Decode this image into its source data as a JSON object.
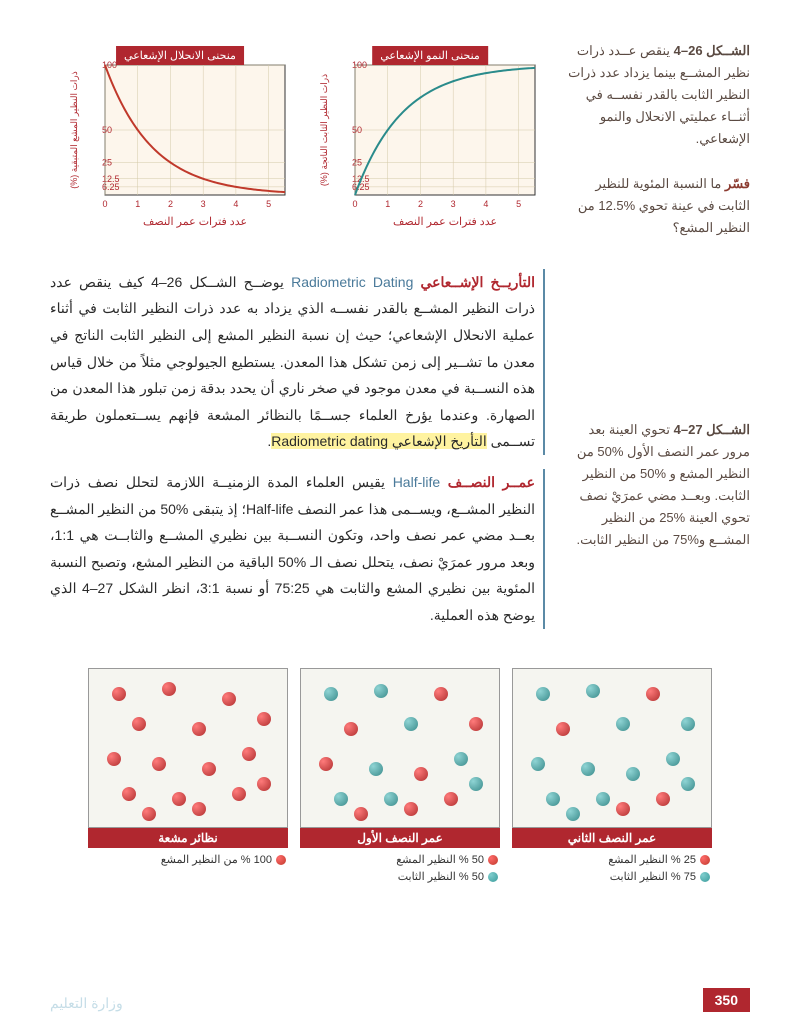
{
  "figure26": {
    "label": "الشــكل 26–4",
    "text": "ينقص عــدد ذرات نظير المشــع بينما يزداد عدد ذرات النظير الثابت بالقدر نفســه في أثنــاء عمليتي الانحلال والنمو الإشعاعي.",
    "question_label": "فسّر",
    "question": "ما النسبة المئوية للنظير الثابت في عينة تحوي %12.5 من النظير المشع؟"
  },
  "figure27": {
    "label": "الشــكل 27–4",
    "text": "تحوي العينة بعد مرور عمر النصف الأول %50 من النظير المشع و %50 من النظير الثابت. وبعــد مضي عمرَيْ نصف تحوي العينة %25 من النظير المشــع و%75 من النظير الثابت."
  },
  "chart1": {
    "title": "منحنى الانحلال الإشعاعي",
    "ylabel": "ذرات النظير المشع المتبقية (%)",
    "xlabel": "عدد فترات عمر النصف",
    "color": "#c0392b",
    "ylim": [
      0,
      100
    ],
    "xlim": [
      0,
      5.5
    ],
    "yticks": [
      6.25,
      12.5,
      25,
      50,
      100
    ],
    "xticks": [
      0,
      1,
      2,
      3,
      4,
      5
    ],
    "points": [
      [
        0,
        100
      ],
      [
        1,
        50
      ],
      [
        2,
        25
      ],
      [
        3,
        12.5
      ],
      [
        4,
        6.25
      ],
      [
        5,
        3.125
      ]
    ]
  },
  "chart2": {
    "title": "منحنى النمو الإشعاعي",
    "ylabel": "ذرات النظير الثابت الناتجة (%)",
    "xlabel": "عدد فترات عمر النصف",
    "color": "#2a8b8b",
    "ylim": [
      0,
      100
    ],
    "xlim": [
      0,
      5.5
    ],
    "yticks": [
      6.25,
      12.5,
      25,
      50,
      100
    ],
    "xticks": [
      0,
      1,
      2,
      3,
      4,
      5
    ],
    "points": [
      [
        0,
        0
      ],
      [
        1,
        50
      ],
      [
        2,
        75
      ],
      [
        3,
        87.5
      ],
      [
        4,
        93.75
      ],
      [
        5,
        96.875
      ]
    ]
  },
  "para1": {
    "term_ar": "التأريــخ الإشــعاعي",
    "term_en": "Radiometric Dating",
    "text1": "يوضــح الشــكل 26–4 كيف ينقص عدد ذرات النظير المشــع بالقدر نفســه الذي يزداد به عدد ذرات النظير الثابت في أثناء عملية الانحلال الإشعاعي؛ حيث إن نسبة النظير المشع إلى النظير الثابت الناتج في معدن ما تشــير إلى زمن تشكل هذا المعدن. يستطيع الجيولوجي مثلاً من خلال قياس هذه النســبة في معدن موجود في صخر ناري أن يحدد بدقة زمن تبلور هذا المعدن من الصهارة. وعندما يؤرخ العلماء جســمًا بالنظائر المشعة فإنهم يســتعملون طريقة تســمى",
    "highlight": "التأريخ الإشعاعي Radiometric dating"
  },
  "para2": {
    "term_ar": "عمــر النصــف",
    "term_en": "Half-life",
    "text": "يقيس العلماء المدة الزمنيــة اللازمة لتحلل نصف ذرات النظير المشــع، ويســمى هذا عمر النصف Half-life؛ إذ يتبقى %50 من النظير المشــع بعــد مضي عمر نصف واحد، وتكون النســبة بين نظيري المشــع والثابــت هي 1:1، وبعد مرور عمرَيْ نصف، يتحلل نصف الـ %50 الباقية من النظير المشع، وتصبح النسبة المئوية بين نظيري المشع والثابت هي 75:25 أو نسبة 3:1، انظر الشكل 27–4 الذي يوضح هذه العملية."
  },
  "particles": {
    "box1": {
      "title": "نظائر مشعة",
      "legend": "100 % من النظير المشع",
      "red": [
        [
          30,
          25
        ],
        [
          80,
          20
        ],
        [
          140,
          30
        ],
        [
          175,
          50
        ],
        [
          50,
          55
        ],
        [
          110,
          60
        ],
        [
          160,
          85
        ],
        [
          25,
          90
        ],
        [
          70,
          95
        ],
        [
          120,
          100
        ],
        [
          40,
          125
        ],
        [
          90,
          130
        ],
        [
          150,
          125
        ],
        [
          175,
          115
        ],
        [
          110,
          140
        ],
        [
          60,
          145
        ]
      ]
    },
    "box2": {
      "title": "عمر النصف الأول",
      "legend1": "50 % النظير المشع",
      "legend2": "50 % النظير الثابت",
      "red": [
        [
          140,
          25
        ],
        [
          175,
          55
        ],
        [
          50,
          60
        ],
        [
          25,
          95
        ],
        [
          120,
          105
        ],
        [
          150,
          130
        ],
        [
          60,
          145
        ],
        [
          110,
          140
        ]
      ],
      "teal": [
        [
          30,
          25
        ],
        [
          80,
          22
        ],
        [
          110,
          55
        ],
        [
          160,
          90
        ],
        [
          75,
          100
        ],
        [
          40,
          130
        ],
        [
          90,
          130
        ],
        [
          175,
          115
        ]
      ]
    },
    "box3": {
      "title": "عمر النصف الثاني",
      "legend1": "25 % النظير المشع",
      "legend2": "75 % النظير الثابت",
      "red": [
        [
          140,
          25
        ],
        [
          50,
          60
        ],
        [
          150,
          130
        ],
        [
          110,
          140
        ]
      ],
      "teal": [
        [
          30,
          25
        ],
        [
          80,
          22
        ],
        [
          175,
          55
        ],
        [
          110,
          55
        ],
        [
          160,
          90
        ],
        [
          25,
          95
        ],
        [
          75,
          100
        ],
        [
          120,
          105
        ],
        [
          40,
          130
        ],
        [
          90,
          130
        ],
        [
          175,
          115
        ],
        [
          60,
          145
        ]
      ]
    }
  },
  "pageNumber": "350",
  "watermark": "وزارة التعليم"
}
